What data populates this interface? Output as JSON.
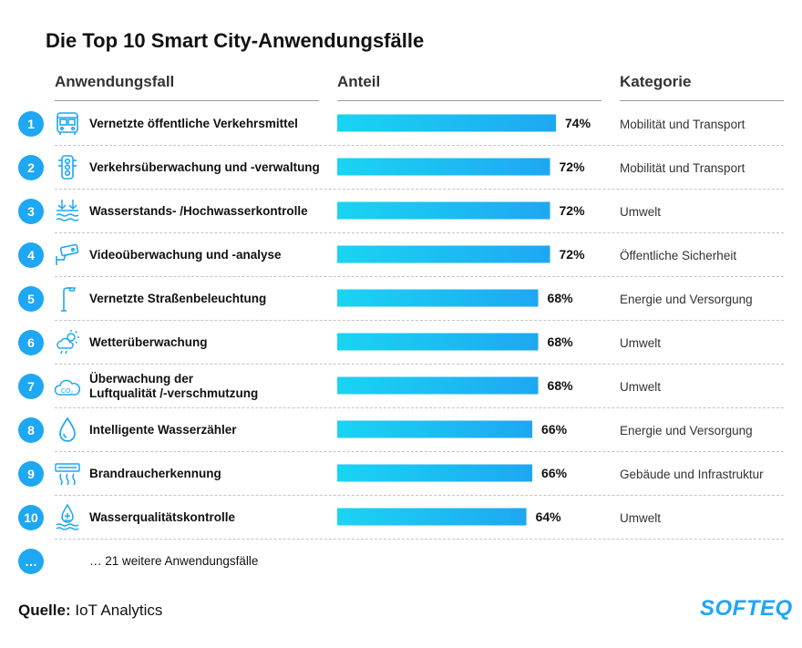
{
  "title": "Die Top 10 Smart City-Anwendungsfälle",
  "headers": {
    "usecase": "Anwendungsfall",
    "share": "Anteil",
    "category": "Kategorie"
  },
  "chart_data": {
    "type": "bar",
    "orientation": "horizontal",
    "title": "Die Top 10 Smart City-Anwendungsfälle",
    "categories": [
      "Vernetzte öffentliche Verkehrsmittel",
      "Verkehrsüberwachung und -verwaltung",
      "Wasserstands- /Hochwasserkontrolle",
      "Videoüberwachung und -analyse",
      "Vernetzte Straßenbeleuchtung",
      "Wetterüberwachung",
      "Überwachung der Luftqualität /-verschmutzung",
      "Intelligente Wasserzähler",
      "Brandraucherkennung",
      "Wasserqualitätskontrolle"
    ],
    "values": [
      74,
      72,
      72,
      72,
      68,
      68,
      68,
      66,
      66,
      64
    ],
    "value_labels": [
      "74%",
      "72%",
      "72%",
      "72%",
      "68%",
      "68%",
      "68%",
      "66%",
      "66%",
      "64%"
    ],
    "unit": "%",
    "xlim": [
      0,
      100
    ],
    "colors": {
      "bar_start": "#1ad4f2",
      "bar_end": "#1ea7f2"
    }
  },
  "rows": [
    {
      "num": "1",
      "label_lines": [
        "Vernetzte öffentliche Verkehrsmittel"
      ],
      "category": "Mobilität und Transport",
      "icon": "bus-icon"
    },
    {
      "num": "2",
      "label_lines": [
        "Verkehrsüberwachung und -verwaltung"
      ],
      "category": "Mobilität und Transport",
      "icon": "traffic-light-icon"
    },
    {
      "num": "3",
      "label_lines": [
        "Wasserstands- /Hochwasserkontrolle"
      ],
      "category": "Umwelt",
      "icon": "water-level-icon"
    },
    {
      "num": "4",
      "label_lines": [
        "Videoüberwachung und -analyse"
      ],
      "category": "Öffentliche Sicherheit",
      "icon": "security-camera-icon"
    },
    {
      "num": "5",
      "label_lines": [
        "Vernetzte Straßenbeleuchtung"
      ],
      "category": "Energie und Versorgung",
      "icon": "street-lamp-icon"
    },
    {
      "num": "6",
      "label_lines": [
        "Wetterüberwachung"
      ],
      "category": "Umwelt",
      "icon": "weather-icon"
    },
    {
      "num": "7",
      "label_lines": [
        "Überwachung der",
        "Luftqualität /-verschmutzung"
      ],
      "category": "Umwelt",
      "icon": "co2-cloud-icon",
      "icon_text": "CO₂"
    },
    {
      "num": "8",
      "label_lines": [
        "Intelligente Wasserzähler"
      ],
      "category": "Energie und Versorgung",
      "icon": "water-drop-icon"
    },
    {
      "num": "9",
      "label_lines": [
        "Brandraucherkennung"
      ],
      "category": "Gebäude und Infrastruktur",
      "icon": "smoke-detector-icon"
    },
    {
      "num": "10",
      "label_lines": [
        "Wasserqualitätskontrolle"
      ],
      "category": "Umwelt",
      "icon": "water-quality-icon"
    }
  ],
  "more": {
    "num": "…",
    "label": "… 21 weitere Anwendungsfälle"
  },
  "source": {
    "label": "Quelle:",
    "value": "IoT Analytics"
  },
  "logo": "SOFTEQ",
  "colors": {
    "accent": "#1ea7f2",
    "text": "#111111",
    "muted": "#333333"
  }
}
